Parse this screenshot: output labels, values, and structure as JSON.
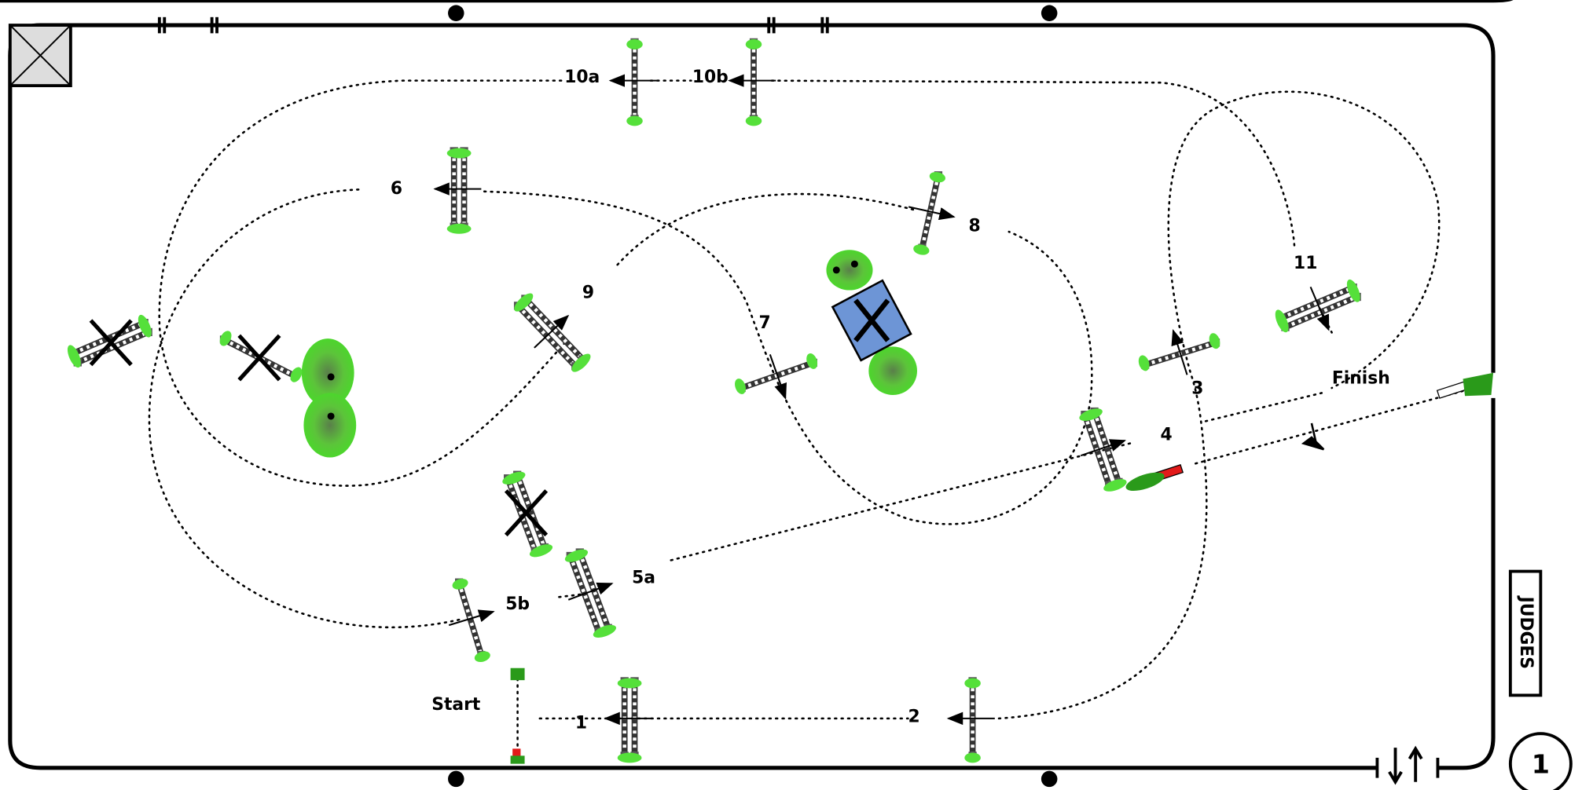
{
  "course_number": "1",
  "judges": "JUDGES",
  "start": "Start",
  "finish": "Finish",
  "obstacle_labels": [
    "1",
    "2",
    "3",
    "4",
    "5a",
    "5b",
    "6",
    "7",
    "8",
    "9",
    "10a",
    "10b",
    "11"
  ]
}
